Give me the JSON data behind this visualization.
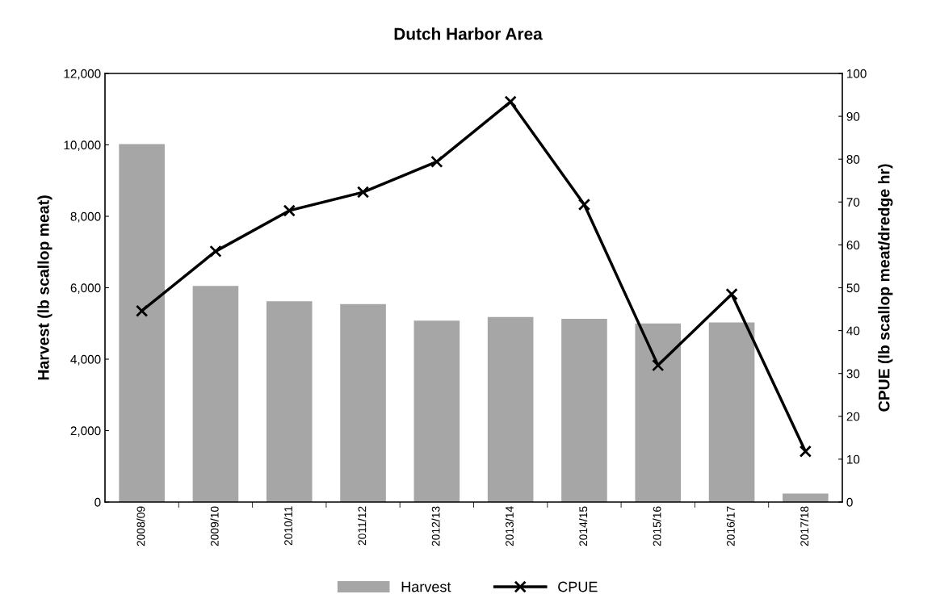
{
  "chart_data": {
    "type": "bar",
    "title": "Dutch Harbor Area",
    "categories": [
      "2008/09",
      "2009/10",
      "2010/11",
      "2011/12",
      "2012/13",
      "2013/14",
      "2014/15",
      "2015/16",
      "2016/17",
      "2017/18"
    ],
    "series": [
      {
        "name": "Harvest",
        "color": "#a6a6a6",
        "values": [
          10020,
          6050,
          5620,
          5540,
          5080,
          5180,
          5130,
          5000,
          5030,
          240
        ]
      },
      {
        "name": "CPUE",
        "type": "line",
        "axis": "y2",
        "color": "#000000",
        "marker": "cross",
        "line_style": "solid",
        "values": [
          44.6,
          58.5,
          68.0,
          72.3,
          79.4,
          93.4,
          69.4,
          31.9,
          48.5,
          11.8
        ]
      }
    ],
    "ylabel": "Harvest (lb scallop meat)",
    "y2label": "CPUE (lb scallop meat/dredge hr)",
    "ylim": [
      0,
      12000
    ],
    "yticks": [
      {
        "value": 0,
        "label": "0"
      },
      {
        "value": 2000,
        "label": "2,000"
      },
      {
        "value": 4000,
        "label": "4,000"
      },
      {
        "value": 6000,
        "label": "6,000"
      },
      {
        "value": 8000,
        "label": "8,000"
      },
      {
        "value": 10000,
        "label": "10,000"
      },
      {
        "value": 12000,
        "label": "12,000"
      }
    ],
    "y2lim": [
      0,
      100
    ],
    "y2ticks": [
      0,
      10,
      20,
      30,
      40,
      50,
      60,
      70,
      80,
      90,
      100
    ],
    "grid": false,
    "legend": "bottom"
  }
}
